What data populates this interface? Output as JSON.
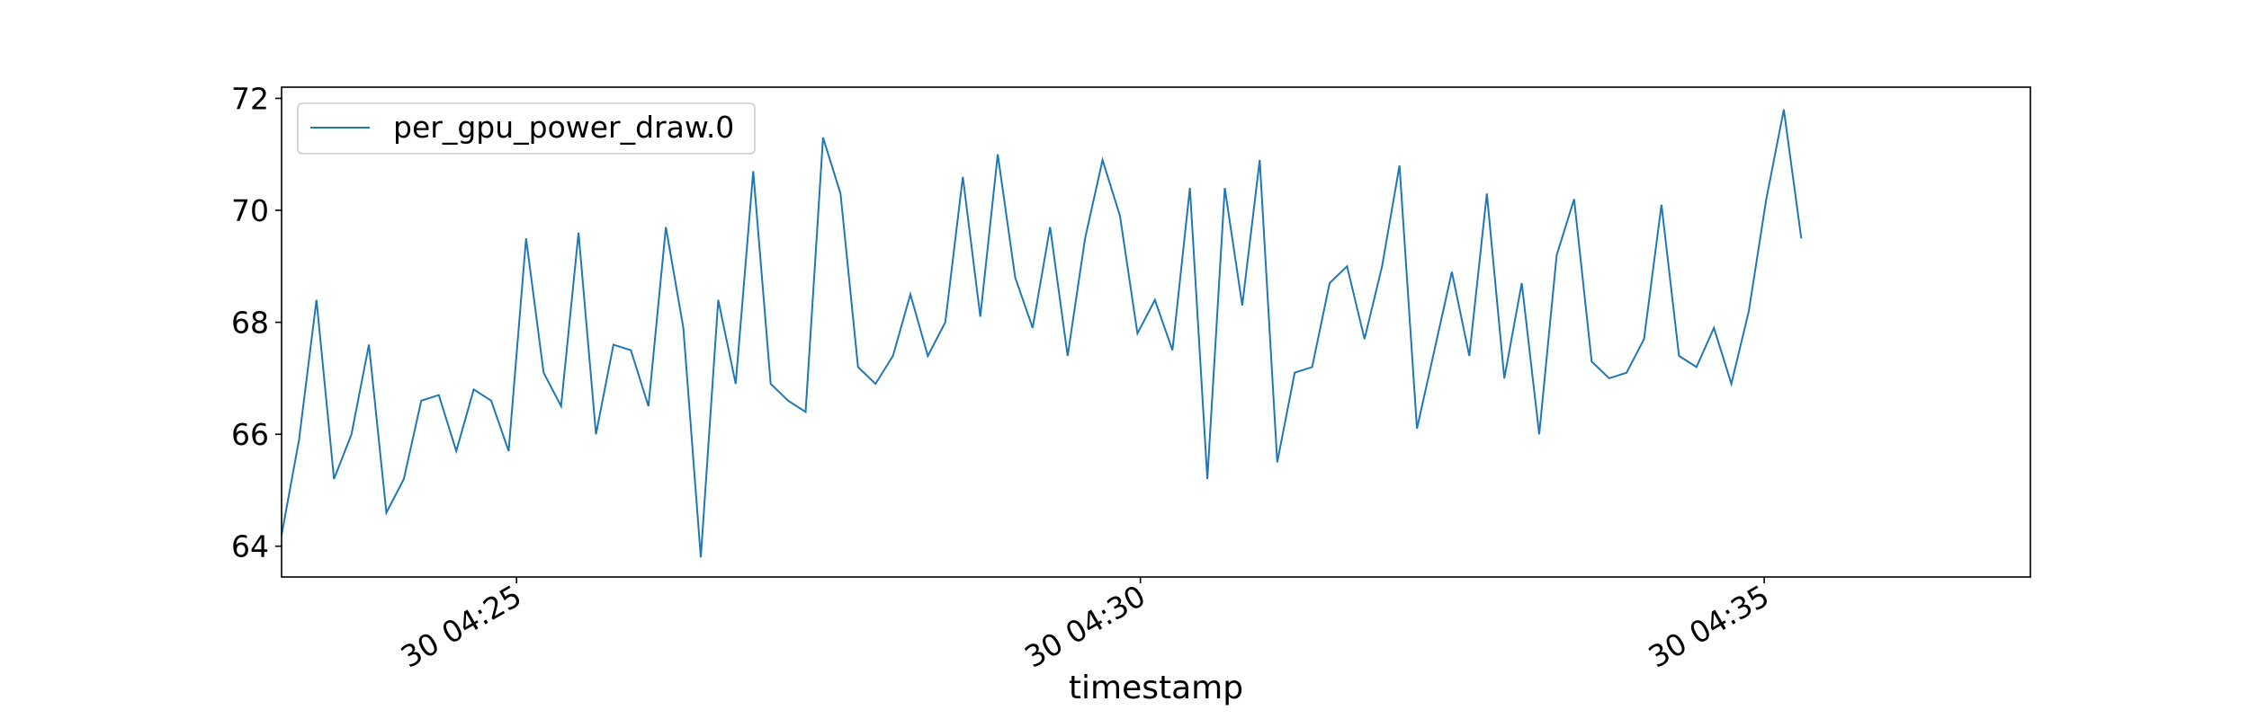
{
  "chart_data": {
    "type": "line",
    "title": "",
    "xlabel": "timestamp",
    "ylabel": "",
    "x_unit": "minutes",
    "x_start": "30 04:23:07",
    "x_step_seconds": 8.4,
    "xlim": [
      "30 04:23:07",
      "30 04:37:08"
    ],
    "ylim": [
      63.45,
      72.2
    ],
    "y_ticks": [
      64,
      66,
      68,
      70,
      72
    ],
    "y_tick_labels": [
      "64",
      "66",
      "68",
      "70",
      "72"
    ],
    "x_ticks": [
      "30 04:25",
      "30 04:30",
      "30 04:35"
    ],
    "x_tick_labels": [
      "30 04:25",
      "30 04:30",
      "30 04:35"
    ],
    "grid": false,
    "legend_position": "upper left",
    "series": [
      {
        "name": "per_gpu_power_draw.0",
        "color": "#1f77b4",
        "values": [
          64.2,
          65.9,
          68.4,
          65.2,
          66.0,
          67.6,
          64.6,
          65.2,
          66.6,
          66.7,
          65.7,
          66.8,
          66.6,
          65.7,
          69.5,
          67.1,
          66.5,
          69.6,
          66.0,
          67.6,
          67.5,
          66.5,
          69.7,
          67.9,
          63.8,
          68.4,
          66.9,
          70.7,
          66.9,
          66.6,
          66.4,
          71.3,
          70.3,
          67.2,
          66.9,
          67.4,
          68.5,
          67.4,
          68.0,
          70.6,
          68.1,
          71.0,
          68.8,
          67.9,
          69.7,
          67.4,
          69.5,
          70.9,
          69.9,
          67.8,
          68.4,
          67.5,
          70.4,
          65.2,
          70.4,
          68.3,
          70.9,
          65.5,
          67.1,
          67.2,
          68.7,
          69.0,
          67.7,
          69.0,
          70.8,
          66.1,
          67.5,
          68.9,
          67.4,
          70.3,
          67.0,
          68.7,
          66.0,
          69.2,
          70.2,
          67.3,
          67.0,
          67.1,
          67.7,
          70.1,
          67.4,
          67.2,
          67.9,
          66.9,
          68.2,
          70.2,
          71.8,
          69.5
        ]
      }
    ]
  }
}
